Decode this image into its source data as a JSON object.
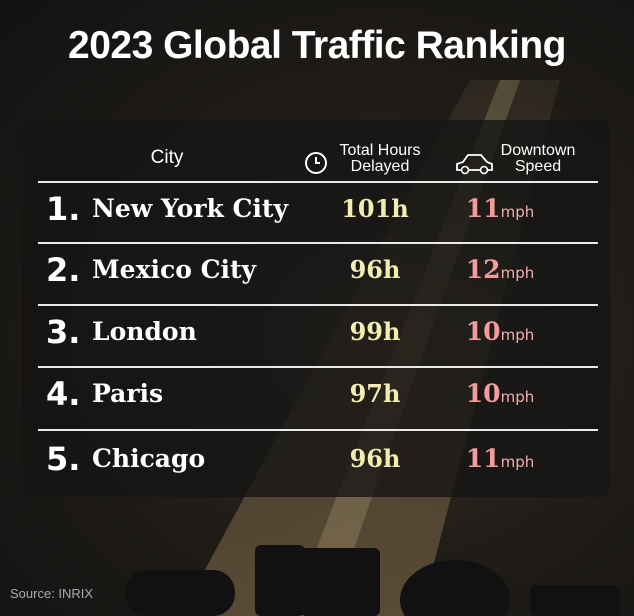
{
  "header": {
    "title": "2023 Global Traffic Ranking"
  },
  "table": {
    "columns": [
      "City",
      "Total Hours Delayed",
      "Downtown Speed"
    ],
    "rows": [
      {
        "rank": "1.",
        "city": "New York City",
        "hours": "101h",
        "speed": "11",
        "unit": "mph"
      },
      {
        "rank": "2.",
        "city": "Mexico City",
        "hours": "96h",
        "speed": "12",
        "unit": "mph"
      },
      {
        "rank": "3.",
        "city": "London",
        "hours": "99h",
        "speed": "10",
        "unit": "mph"
      },
      {
        "rank": "4.",
        "city": "Paris",
        "hours": "97h",
        "speed": "10",
        "unit": "mph"
      },
      {
        "rank": "5.",
        "city": "Chicago",
        "hours": "96h",
        "speed": "11",
        "unit": "mph"
      }
    ]
  },
  "footer": {
    "source": "Source: INRIX"
  }
}
